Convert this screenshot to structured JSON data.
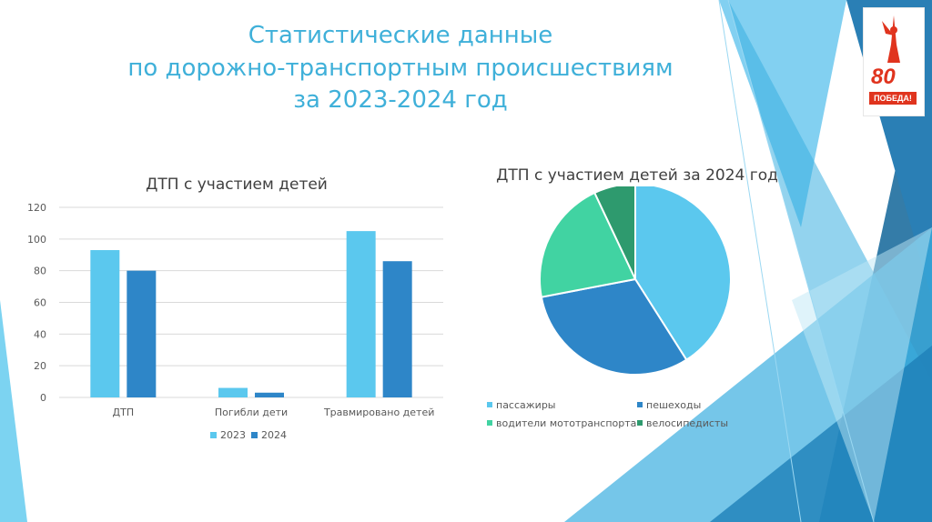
{
  "slide": {
    "title_lines": [
      "Статистические данные",
      "по дорожно-транспортным происшествиям",
      "за 2023-2024 год"
    ],
    "logo": {
      "number": "80",
      "text": "ПОБЕДА!"
    },
    "colors": {
      "title": "#3fb0d9",
      "deco_light": "#6cc8ef",
      "deco_mid": "#3aaee0",
      "deco_dark": "#1e6e9e"
    }
  },
  "chart_data": [
    {
      "type": "bar",
      "title": "ДТП с участием детей",
      "categories": [
        "ДТП",
        "Погибли дети",
        "Травмировано детей"
      ],
      "series": [
        {
          "name": "2023",
          "values": [
            93,
            6,
            105
          ],
          "color": "#5bc8ee"
        },
        {
          "name": "2024",
          "values": [
            80,
            3,
            86
          ],
          "color": "#2e86c8"
        }
      ],
      "y_ticks": [
        "0",
        "20",
        "40",
        "60",
        "80",
        "100",
        "120"
      ],
      "ylim": [
        0,
        120
      ],
      "grid": true,
      "legend_position": "bottom"
    },
    {
      "type": "pie",
      "title": "ДТП  с участием детей за 2024 год",
      "slices": [
        {
          "label": "пассажиры",
          "value": 41,
          "color": "#5bc8ee"
        },
        {
          "label": "пешеходы",
          "value": 31,
          "color": "#2e86c8"
        },
        {
          "label": "водители мототранспорта",
          "value": 21,
          "color": "#41d3a2"
        },
        {
          "label": "велосипедисты",
          "value": 7,
          "color": "#2e9a6e"
        }
      ],
      "legend_position": "bottom"
    }
  ]
}
